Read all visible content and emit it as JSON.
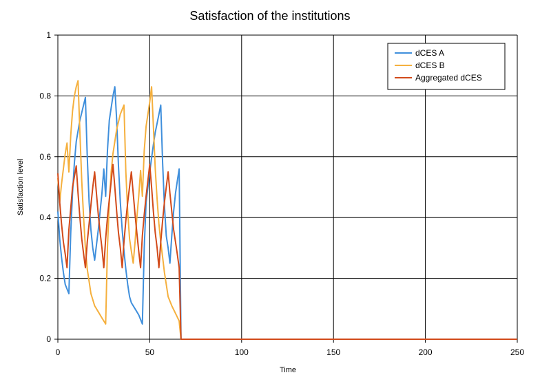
{
  "chart_data": {
    "type": "line",
    "title": "Satisfaction of the institutions",
    "xlabel": "Time",
    "ylabel": "Satisfaction level",
    "xlim": [
      0,
      250
    ],
    "ylim": [
      0,
      1
    ],
    "x_ticks": [
      0,
      50,
      100,
      150,
      200,
      250
    ],
    "y_ticks": [
      0,
      0.2,
      0.4,
      0.6,
      0.8,
      1
    ],
    "grid": true,
    "legend_position": "top-right",
    "series": [
      {
        "name": "dCES A",
        "color": "#3f8fdc",
        "points": [
          [
            0,
            0.42
          ],
          [
            1,
            0.33
          ],
          [
            2,
            0.27
          ],
          [
            3,
            0.22
          ],
          [
            4,
            0.18
          ],
          [
            6,
            0.15
          ],
          [
            7,
            0.35
          ],
          [
            8,
            0.48
          ],
          [
            9,
            0.58
          ],
          [
            10,
            0.65
          ],
          [
            12,
            0.72
          ],
          [
            15,
            0.795
          ],
          [
            16,
            0.6
          ],
          [
            17,
            0.45
          ],
          [
            18,
            0.36
          ],
          [
            19,
            0.3
          ],
          [
            20,
            0.26
          ],
          [
            22,
            0.36
          ],
          [
            24,
            0.48
          ],
          [
            25,
            0.56
          ],
          [
            26,
            0.47
          ],
          [
            27,
            0.62
          ],
          [
            28,
            0.72
          ],
          [
            30,
            0.8
          ],
          [
            31,
            0.83
          ],
          [
            32,
            0.72
          ],
          [
            33,
            0.57
          ],
          [
            34,
            0.45
          ],
          [
            35,
            0.36
          ],
          [
            36,
            0.29
          ],
          [
            37,
            0.23
          ],
          [
            38,
            0.18
          ],
          [
            39,
            0.14
          ],
          [
            40,
            0.12
          ],
          [
            42,
            0.1
          ],
          [
            44,
            0.08
          ],
          [
            46,
            0.05
          ],
          [
            47,
            0.3
          ],
          [
            48,
            0.45
          ],
          [
            50,
            0.55
          ],
          [
            52,
            0.64
          ],
          [
            53,
            0.68
          ],
          [
            54,
            0.71
          ],
          [
            56,
            0.77
          ],
          [
            57,
            0.58
          ],
          [
            58,
            0.44
          ],
          [
            59,
            0.34
          ],
          [
            60,
            0.3
          ],
          [
            61,
            0.25
          ],
          [
            62,
            0.34
          ],
          [
            63,
            0.42
          ],
          [
            64,
            0.48
          ],
          [
            65,
            0.52
          ],
          [
            66,
            0.56
          ],
          [
            67,
            0.0
          ],
          [
            70,
            0.0
          ],
          [
            250,
            0.0
          ]
        ]
      },
      {
        "name": "dCES B",
        "color": "#f5b03e",
        "points": [
          [
            0,
            0.53
          ],
          [
            1,
            0.45
          ],
          [
            2,
            0.51
          ],
          [
            3,
            0.56
          ],
          [
            4,
            0.61
          ],
          [
            5,
            0.645
          ],
          [
            6,
            0.55
          ],
          [
            7,
            0.67
          ],
          [
            8,
            0.75
          ],
          [
            9,
            0.8
          ],
          [
            10,
            0.83
          ],
          [
            11,
            0.85
          ],
          [
            12,
            0.68
          ],
          [
            13,
            0.52
          ],
          [
            14,
            0.4
          ],
          [
            15,
            0.3
          ],
          [
            16,
            0.23
          ],
          [
            17,
            0.19
          ],
          [
            18,
            0.15
          ],
          [
            19,
            0.13
          ],
          [
            20,
            0.11
          ],
          [
            22,
            0.09
          ],
          [
            24,
            0.07
          ],
          [
            26,
            0.05
          ],
          [
            27,
            0.3
          ],
          [
            28,
            0.45
          ],
          [
            29,
            0.55
          ],
          [
            30,
            0.61
          ],
          [
            31,
            0.65
          ],
          [
            32,
            0.69
          ],
          [
            34,
            0.74
          ],
          [
            36,
            0.77
          ],
          [
            37,
            0.55
          ],
          [
            38,
            0.42
          ],
          [
            39,
            0.33
          ],
          [
            40,
            0.29
          ],
          [
            41,
            0.25
          ],
          [
            42,
            0.32
          ],
          [
            43,
            0.4
          ],
          [
            44,
            0.47
          ],
          [
            45,
            0.555
          ],
          [
            46,
            0.47
          ],
          [
            47,
            0.62
          ],
          [
            48,
            0.7
          ],
          [
            50,
            0.78
          ],
          [
            51,
            0.83
          ],
          [
            52,
            0.7
          ],
          [
            53,
            0.56
          ],
          [
            54,
            0.46
          ],
          [
            55,
            0.38
          ],
          [
            56,
            0.32
          ],
          [
            57,
            0.27
          ],
          [
            58,
            0.22
          ],
          [
            59,
            0.18
          ],
          [
            60,
            0.14
          ],
          [
            62,
            0.11
          ],
          [
            64,
            0.085
          ],
          [
            66,
            0.06
          ],
          [
            67,
            0.0
          ],
          [
            70,
            0.0
          ],
          [
            250,
            0.0
          ]
        ]
      },
      {
        "name": "Aggregated dCES",
        "color": "#d24a1a",
        "points": [
          [
            0,
            0.545
          ],
          [
            1,
            0.45
          ],
          [
            2,
            0.38
          ],
          [
            3,
            0.32
          ],
          [
            4,
            0.28
          ],
          [
            5,
            0.235
          ],
          [
            6,
            0.36
          ],
          [
            7,
            0.43
          ],
          [
            8,
            0.5
          ],
          [
            10,
            0.57
          ],
          [
            11,
            0.48
          ],
          [
            12,
            0.4
          ],
          [
            13,
            0.33
          ],
          [
            14,
            0.28
          ],
          [
            15,
            0.235
          ],
          [
            16,
            0.32
          ],
          [
            17,
            0.38
          ],
          [
            18,
            0.44
          ],
          [
            19,
            0.5
          ],
          [
            20,
            0.55
          ],
          [
            21,
            0.48
          ],
          [
            22,
            0.41
          ],
          [
            23,
            0.35
          ],
          [
            24,
            0.3
          ],
          [
            25,
            0.235
          ],
          [
            26,
            0.33
          ],
          [
            27,
            0.4
          ],
          [
            28,
            0.46
          ],
          [
            30,
            0.575
          ],
          [
            31,
            0.5
          ],
          [
            32,
            0.42
          ],
          [
            33,
            0.35
          ],
          [
            34,
            0.3
          ],
          [
            35,
            0.235
          ],
          [
            36,
            0.32
          ],
          [
            37,
            0.39
          ],
          [
            38,
            0.45
          ],
          [
            40,
            0.55
          ],
          [
            41,
            0.48
          ],
          [
            42,
            0.41
          ],
          [
            43,
            0.35
          ],
          [
            44,
            0.29
          ],
          [
            45,
            0.235
          ],
          [
            46,
            0.34
          ],
          [
            47,
            0.41
          ],
          [
            48,
            0.47
          ],
          [
            50,
            0.575
          ],
          [
            51,
            0.5
          ],
          [
            52,
            0.42
          ],
          [
            53,
            0.35
          ],
          [
            54,
            0.3
          ],
          [
            55,
            0.235
          ],
          [
            56,
            0.32
          ],
          [
            57,
            0.39
          ],
          [
            58,
            0.45
          ],
          [
            60,
            0.55
          ],
          [
            61,
            0.48
          ],
          [
            62,
            0.42
          ],
          [
            63,
            0.36
          ],
          [
            64,
            0.32
          ],
          [
            65,
            0.28
          ],
          [
            66,
            0.235
          ],
          [
            67,
            0.0
          ],
          [
            70,
            0.0
          ],
          [
            250,
            0.0
          ]
        ]
      }
    ]
  }
}
